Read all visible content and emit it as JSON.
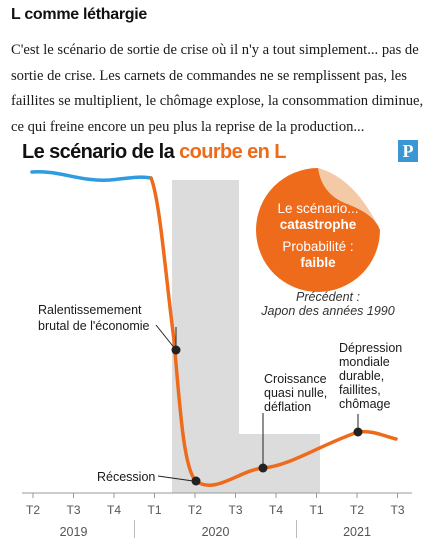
{
  "article": {
    "heading": "L comme léthargie",
    "intro": "C'est le scénario de sortie de crise où il n'y a tout simplement... pas de sortie de crise. Les carnets de commandes ne se remplissent pas, les faillites se multiplient, le chômage explose, la consommation diminue, ce qui freine encore un peu plus la reprise de la production..."
  },
  "logo": {
    "letter": "P"
  },
  "colors": {
    "blue": "#2f9be0",
    "orange": "#ee6b1b",
    "shade": "#dcdcdc",
    "axis": "#999999"
  },
  "chart_data": {
    "type": "line",
    "title_part1": "Le scénario de la ",
    "title_part2": "courbe en L",
    "ticks": [
      "T2",
      "T3",
      "T4",
      "T1",
      "T2",
      "T3",
      "T4",
      "T1",
      "T2",
      "T3"
    ],
    "years": [
      "2019",
      "2020",
      "2021"
    ],
    "badge": {
      "line1": "Le scénario...",
      "line2": "catastrophe",
      "line3": "Probabilité :",
      "line4": "faible"
    },
    "precedent": {
      "line1": "Précédent :",
      "line2": "Japon des années 1990"
    },
    "annotations": {
      "slowdown": [
        "Ralentissemement",
        "brutal de l'économie"
      ],
      "recession": "Récession",
      "growth": [
        "Croissance",
        "quasi nulle,",
        "déflation"
      ],
      "depression": [
        "Dépression",
        "mondiale",
        "durable,",
        "faillites,",
        "chômage"
      ]
    },
    "shaded_region": "L",
    "grid": false,
    "legend": "none"
  }
}
